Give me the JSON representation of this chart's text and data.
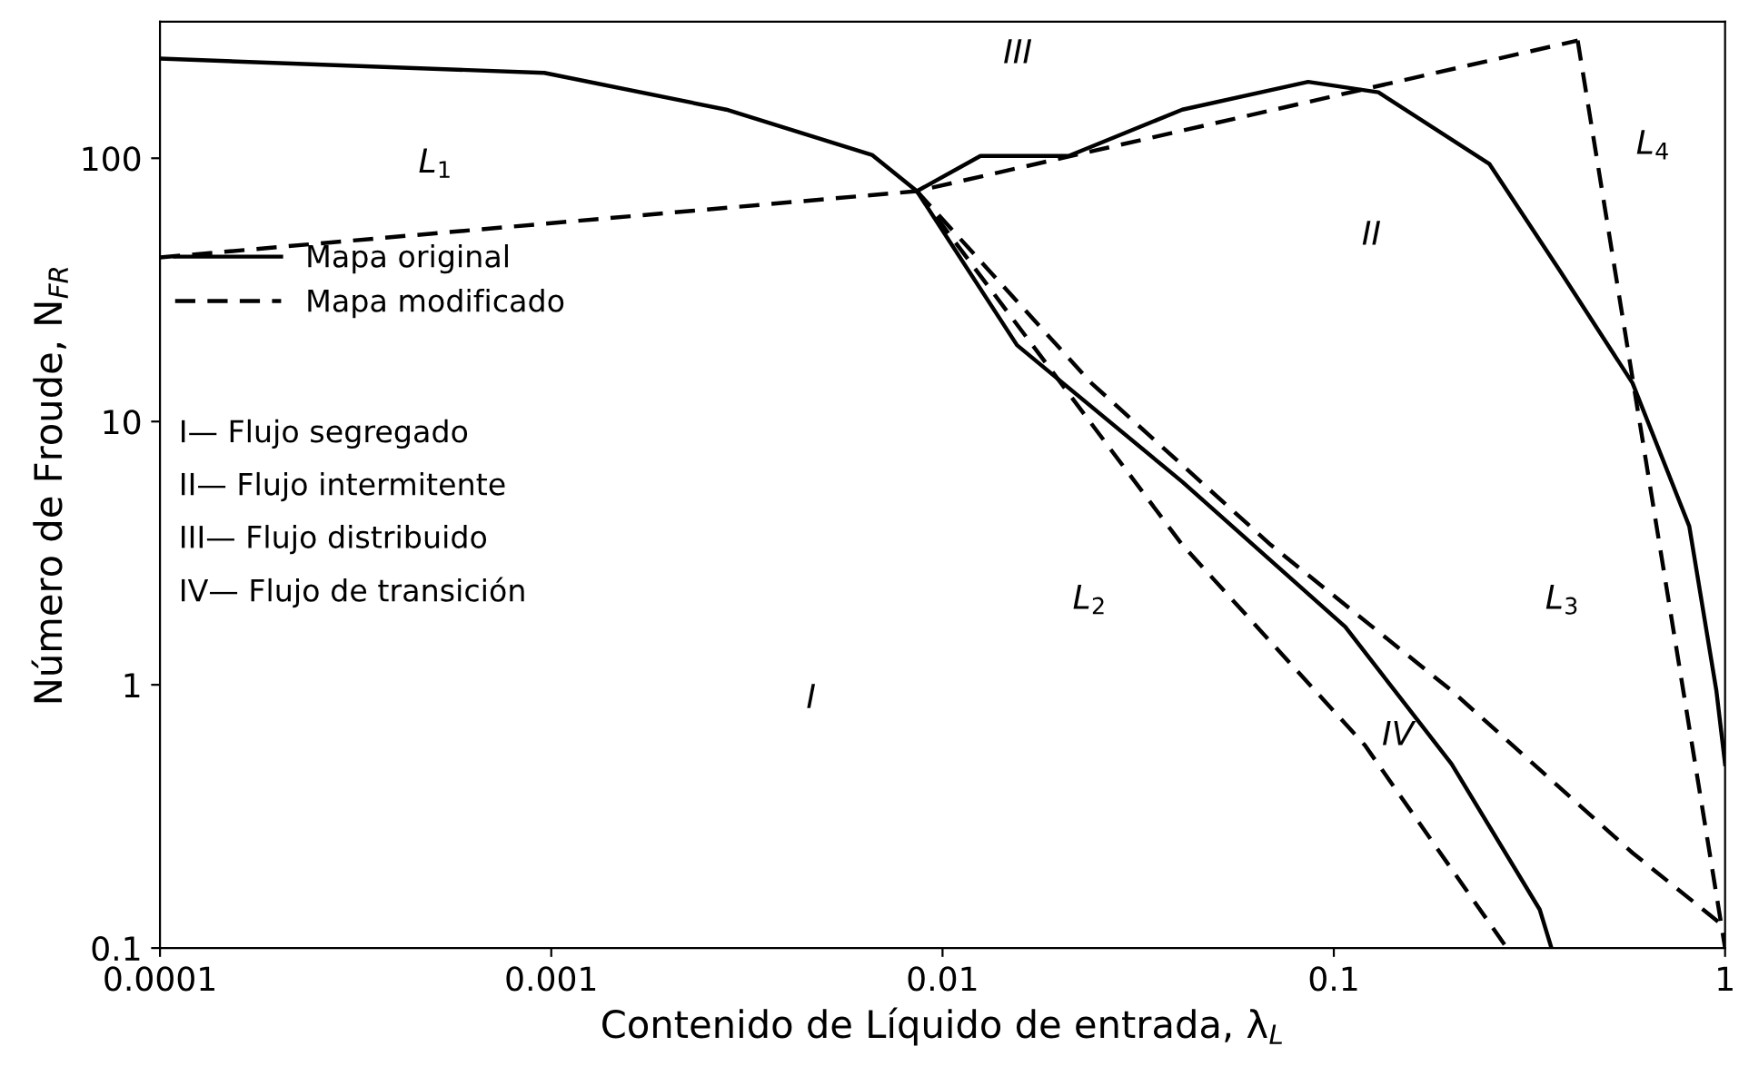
{
  "chart_data": {
    "type": "line",
    "xlabel": "Contenido de Líquido de entrada, λ$_{L}$",
    "ylabel": "Número de Froude, N$_{FR}$",
    "log": "xy",
    "xlim": [
      0.0001,
      1
    ],
    "ylim": [
      0.1,
      330
    ],
    "xticks": [
      {
        "value": 0.0001,
        "label": "0.0001"
      },
      {
        "value": 0.001,
        "label": "0.001"
      },
      {
        "value": 0.01,
        "label": "0.01"
      },
      {
        "value": 0.1,
        "label": "0.1"
      },
      {
        "value": 1,
        "label": "1"
      }
    ],
    "yticks": [
      {
        "value": 0.1,
        "label": "0.1"
      },
      {
        "value": 1,
        "label": "1"
      },
      {
        "value": 10,
        "label": "10"
      },
      {
        "value": 100,
        "label": "100"
      }
    ],
    "grid": false,
    "legend": "left",
    "marker": "none",
    "series": [
      {
        "name": "Mapa original",
        "color": "#000000",
        "line_style": "solid",
        "x": [
          0.0001,
          0.00096,
          0.0028,
          0.0066,
          0.0086,
          0.0155,
          0.041,
          0.107,
          0.2,
          0.336,
          0.36
        ],
        "values": [
          239,
          211,
          153,
          103,
          75,
          19.5,
          5.9,
          1.66,
          0.5,
          0.14,
          0.1
        ]
      },
      {
        "color": "#000000",
        "line_style": "solid",
        "x": [
          0.0086,
          0.0125,
          0.021,
          0.041,
          0.086,
          0.13,
          0.25,
          0.38,
          0.58,
          0.81,
          0.95,
          1.0
        ],
        "values": [
          75,
          102,
          102,
          153,
          195,
          178,
          95,
          37,
          14,
          4,
          0.95,
          0.5
        ]
      },
      {
        "name": "Mapa modificado",
        "color": "#000000",
        "line_style": "dashed",
        "x": [
          0.0001,
          0.0086,
          0.42
        ],
        "values": [
          42,
          75,
          280
        ]
      },
      {
        "color": "#000000",
        "line_style": "dashed",
        "x": [
          0.42,
          1.0
        ],
        "values": [
          280,
          0.1
        ]
      },
      {
        "color": "#000000",
        "line_style": "dashed",
        "x": [
          0.0086,
          0.041,
          0.12,
          0.277
        ],
        "values": [
          75,
          3.4,
          0.59,
          0.1
        ]
      },
      {
        "color": "#000000",
        "line_style": "dashed",
        "x": [
          0.0086,
          0.024,
          0.069,
          0.2,
          0.58,
          1.0
        ],
        "values": [
          75,
          14,
          3.4,
          0.95,
          0.23,
          0.12
        ]
      }
    ],
    "annotations": [
      "III",
      "L$_{1}$",
      "II",
      "L$_{4}$",
      "L$_{2}$",
      "L$_{3}$",
      "IV",
      "I",
      "I— Flujo segregado",
      "II— Flujo intermitente",
      "III— Flujo distribuido",
      "IV— Flujo de transición"
    ]
  }
}
